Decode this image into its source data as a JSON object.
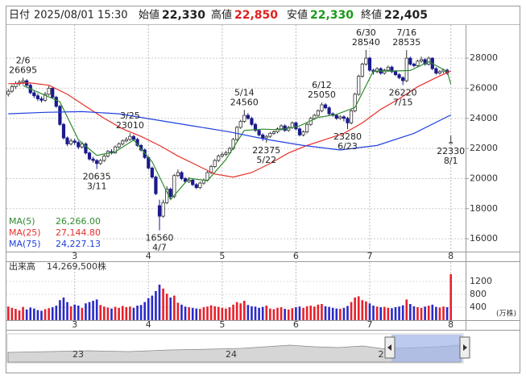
{
  "header": {
    "date_label": "日付",
    "datetime": "2025/08/01 15:30",
    "open_label": "始値",
    "open": "22,330",
    "high_label": "高値",
    "high": "22,850",
    "low_label": "安値",
    "low": "22,330",
    "close_label": "終値",
    "close": "22,405"
  },
  "chart_data": [
    {
      "type": "candlestick",
      "xlim": [
        -0.5,
        124
      ],
      "ylim": [
        15150,
        30200
      ],
      "yticks": [
        16000,
        18000,
        20000,
        22000,
        24000,
        26000,
        28000
      ],
      "xticks": [
        {
          "value": 18,
          "label": "3"
        },
        {
          "value": 38,
          "label": "4"
        },
        {
          "value": 58,
          "label": "5"
        },
        {
          "value": 78,
          "label": "6"
        },
        {
          "value": 98,
          "label": "7"
        },
        {
          "value": 120,
          "label": "8"
        }
      ],
      "up_color": "#ffffff",
      "down_color": "#1a1a8c",
      "grid": true,
      "ohlc": [
        [
          25600,
          25950,
          25450,
          25800
        ],
        [
          25800,
          26250,
          25700,
          26100
        ],
        [
          26100,
          26450,
          25950,
          26300
        ],
        [
          26300,
          26550,
          26150,
          26400
        ],
        [
          26400,
          26695,
          26250,
          26500
        ],
        [
          26500,
          26600,
          26100,
          26200
        ],
        [
          26200,
          26300,
          25600,
          25700
        ],
        [
          25700,
          25850,
          25350,
          25500
        ],
        [
          25500,
          25650,
          25150,
          25300
        ],
        [
          25300,
          25450,
          25050,
          25200
        ],
        [
          25200,
          25750,
          25100,
          25600
        ],
        [
          25600,
          26150,
          25500,
          26000
        ],
        [
          26000,
          26100,
          25300,
          25400
        ],
        [
          25400,
          25500,
          24700,
          24800
        ],
        [
          24800,
          24900,
          23500,
          23600
        ],
        [
          23600,
          23700,
          22600,
          22700
        ],
        [
          22700,
          22800,
          22150,
          22300
        ],
        [
          22300,
          22650,
          22200,
          22500
        ],
        [
          22500,
          22650,
          22250,
          22400
        ],
        [
          22400,
          22500,
          21950,
          22100
        ],
        [
          22100,
          22450,
          22000,
          22300
        ],
        [
          22300,
          22400,
          21600,
          21700
        ],
        [
          21700,
          21800,
          21200,
          21300
        ],
        [
          21300,
          21450,
          21050,
          21200
        ],
        [
          21200,
          21300,
          20635,
          21000
        ],
        [
          21000,
          21300,
          20900,
          21200
        ],
        [
          21200,
          21600,
          21100,
          21500
        ],
        [
          21500,
          21900,
          21400,
          21800
        ],
        [
          21800,
          21950,
          21600,
          21700
        ],
        [
          21700,
          22200,
          21650,
          22100
        ],
        [
          22100,
          22400,
          22000,
          22300
        ],
        [
          22300,
          22600,
          22200,
          22500
        ],
        [
          22500,
          22750,
          22400,
          22600
        ],
        [
          22600,
          23010,
          22500,
          22800
        ],
        [
          22800,
          22900,
          22500,
          22600
        ],
        [
          22600,
          22700,
          22100,
          22200
        ],
        [
          22200,
          22300,
          21800,
          21900
        ],
        [
          21900,
          22000,
          21300,
          21400
        ],
        [
          21400,
          21500,
          20600,
          20700
        ],
        [
          20700,
          20800,
          20000,
          20100
        ],
        [
          20100,
          20200,
          18900,
          19000
        ],
        [
          18200,
          18600,
          16560,
          17500
        ],
        [
          17500,
          18600,
          17400,
          18400
        ],
        [
          18400,
          19500,
          18300,
          19300
        ],
        [
          19300,
          19400,
          18600,
          18800
        ],
        [
          18800,
          20300,
          18700,
          20200
        ],
        [
          20200,
          20600,
          20100,
          20400
        ],
        [
          20400,
          20500,
          19900,
          20000
        ],
        [
          20000,
          20100,
          19700,
          19800
        ],
        [
          19800,
          20100,
          19700,
          19900
        ],
        [
          19900,
          20000,
          19500,
          19600
        ],
        [
          19600,
          19700,
          19300,
          19400
        ],
        [
          19400,
          19800,
          19300,
          19700
        ],
        [
          19700,
          20000,
          19600,
          19900
        ],
        [
          19900,
          20500,
          19800,
          20400
        ],
        [
          20400,
          20900,
          20300,
          20800
        ],
        [
          20800,
          21300,
          20700,
          21200
        ],
        [
          21200,
          21600,
          21100,
          21500
        ],
        [
          21500,
          21750,
          21400,
          21600
        ],
        [
          21600,
          21850,
          21500,
          21700
        ],
        [
          21700,
          22100,
          21600,
          22000
        ],
        [
          22000,
          22700,
          21900,
          22600
        ],
        [
          22600,
          23500,
          22500,
          23400
        ],
        [
          23400,
          23900,
          23300,
          23800
        ],
        [
          23800,
          24560,
          23700,
          24200
        ],
        [
          24200,
          24350,
          23900,
          24000
        ],
        [
          24000,
          24100,
          23500,
          23600
        ],
        [
          23600,
          23700,
          23100,
          23200
        ],
        [
          23200,
          23300,
          22800,
          22900
        ],
        [
          22900,
          23000,
          22500,
          22700
        ],
        [
          22700,
          22900,
          22375,
          22800
        ],
        [
          22800,
          23100,
          22700,
          23000
        ],
        [
          23000,
          23200,
          22900,
          23100
        ],
        [
          23100,
          23400,
          23000,
          23300
        ],
        [
          23300,
          23600,
          23200,
          23500
        ],
        [
          23500,
          23600,
          23100,
          23200
        ],
        [
          23200,
          23500,
          23100,
          23400
        ],
        [
          23400,
          23800,
          23300,
          23700
        ],
        [
          23700,
          23800,
          23200,
          23300
        ],
        [
          23300,
          23400,
          22800,
          22900
        ],
        [
          22900,
          23200,
          22800,
          23100
        ],
        [
          23100,
          23700,
          23000,
          23600
        ],
        [
          23600,
          24100,
          23500,
          24000
        ],
        [
          24000,
          24300,
          23900,
          24200
        ],
        [
          24200,
          24600,
          24100,
          24500
        ],
        [
          24500,
          25050,
          24400,
          24900
        ],
        [
          24900,
          25000,
          24600,
          24700
        ],
        [
          24700,
          24800,
          24200,
          24300
        ],
        [
          24300,
          24400,
          24100,
          24200
        ],
        [
          24200,
          24300,
          23900,
          24000
        ],
        [
          24000,
          24200,
          23900,
          24100
        ],
        [
          24100,
          24200,
          23800,
          24000
        ],
        [
          24000,
          24100,
          23280,
          23700
        ],
        [
          23700,
          24600,
          23600,
          24500
        ],
        [
          24500,
          25700,
          24400,
          25600
        ],
        [
          25600,
          26900,
          25500,
          26800
        ],
        [
          26800,
          27700,
          26700,
          27600
        ],
        [
          27600,
          28540,
          27500,
          28000
        ],
        [
          28000,
          28100,
          27100,
          27200
        ],
        [
          27200,
          27300,
          26900,
          27100
        ],
        [
          27100,
          27400,
          27000,
          27300
        ],
        [
          27300,
          27400,
          26900,
          27000
        ],
        [
          27000,
          27300,
          26900,
          27200
        ],
        [
          27200,
          27500,
          27100,
          27400
        ],
        [
          27400,
          27500,
          27000,
          27100
        ],
        [
          27100,
          27200,
          26800,
          26900
        ],
        [
          26900,
          27000,
          26600,
          26700
        ],
        [
          26700,
          26800,
          26220,
          26500
        ],
        [
          26500,
          28535,
          26400,
          28000
        ],
        [
          28000,
          28100,
          27500,
          27600
        ],
        [
          27600,
          27700,
          27400,
          27500
        ],
        [
          27500,
          27900,
          27400,
          27800
        ],
        [
          27800,
          28100,
          27700,
          27900
        ],
        [
          27900,
          28000,
          27500,
          27600
        ],
        [
          27600,
          28100,
          27500,
          28000
        ],
        [
          28000,
          28050,
          27200,
          27300
        ],
        [
          27300,
          27400,
          26900,
          27000
        ],
        [
          27000,
          27200,
          26900,
          27100
        ],
        [
          27100,
          27300,
          27000,
          27200
        ],
        [
          27200,
          27300,
          26900,
          27000
        ],
        [
          22330,
          22850,
          22330,
          22405
        ]
      ],
      "series": [
        {
          "name": "MA(5)",
          "value_label": "26,266.00",
          "color": "#2e8b2e",
          "x": [
            4,
            9,
            14,
            19,
            24,
            29,
            34,
            39,
            44,
            49,
            54,
            59,
            64,
            69,
            74,
            79,
            84,
            89,
            94,
            99,
            104,
            109,
            114,
            119,
            120
          ],
          "values": [
            26180,
            25640,
            25100,
            22580,
            21540,
            21780,
            22560,
            21120,
            18600,
            20020,
            19860,
            21260,
            23200,
            23280,
            23240,
            23500,
            24060,
            24260,
            24720,
            27140,
            27140,
            27180,
            27760,
            27120,
            26266
          ]
        },
        {
          "name": "MA(25)",
          "value_label": "27,144.80",
          "color": "#e8302a",
          "x": [
            0,
            6,
            11,
            16,
            21,
            26,
            31,
            36,
            41,
            46,
            51,
            56,
            61,
            66,
            71,
            76,
            81,
            86,
            91,
            96,
            101,
            106,
            111,
            116,
            120
          ],
          "values": [
            26300,
            26350,
            26200,
            25600,
            24800,
            24000,
            23300,
            22800,
            22200,
            21500,
            20900,
            20300,
            20100,
            20400,
            21000,
            21700,
            22200,
            22600,
            23000,
            23700,
            24600,
            25300,
            26100,
            26700,
            27144.8
          ]
        },
        {
          "name": "MA(75)",
          "value_label": "24,227.13",
          "color": "#2040e0",
          "x": [
            0,
            10,
            20,
            30,
            40,
            50,
            60,
            70,
            80,
            90,
            100,
            110,
            120
          ],
          "values": [
            24300,
            24400,
            24450,
            24300,
            23900,
            23500,
            23100,
            22600,
            22200,
            21900,
            22200,
            23000,
            24227.13
          ]
        }
      ],
      "annotations": [
        {
          "x": 4,
          "date": "2/6",
          "value": 26695
        },
        {
          "x": 24,
          "date": "3/11",
          "value": 20635
        },
        {
          "x": 33,
          "date": "3/25",
          "value": 23010
        },
        {
          "x": 41,
          "date": "4/7",
          "value": 16560
        },
        {
          "x": 64,
          "date": "5/14",
          "value": 24560
        },
        {
          "x": 70,
          "date": "5/22",
          "value": 22375
        },
        {
          "x": 85,
          "date": "6/12",
          "value": 25050
        },
        {
          "x": 92,
          "date": "6/23",
          "value": 23280
        },
        {
          "x": 97,
          "date": "6/30",
          "value": 28540
        },
        {
          "x": 107,
          "date": "7/15",
          "value": 26220
        },
        {
          "x": 108,
          "date": "7/16",
          "value": 28535
        },
        {
          "x": 120,
          "date": "8/1",
          "value": 22330
        }
      ]
    },
    {
      "type": "bar",
      "title": "出来高",
      "total": "14,269,500株",
      "unit": "(万株)",
      "xlim": [
        -0.5,
        124
      ],
      "ylim": [
        0,
        1800
      ],
      "yticks": [
        400,
        800,
        1200
      ],
      "xticks": [
        {
          "value": 18,
          "label": "3"
        },
        {
          "value": 38,
          "label": "4"
        },
        {
          "value": 58,
          "label": "5"
        },
        {
          "value": 78,
          "label": "6"
        },
        {
          "value": 98,
          "label": "7"
        },
        {
          "value": 120,
          "label": "8"
        }
      ],
      "up_color": "#e8202a",
      "down_color": "#2a2ac8",
      "values": [
        420,
        380,
        350,
        300,
        410,
        330,
        390,
        360,
        310,
        290,
        340,
        370,
        400,
        450,
        620,
        700,
        560,
        430,
        480,
        450,
        380,
        520,
        560,
        600,
        640,
        470,
        420,
        390,
        360,
        410,
        380,
        440,
        400,
        420,
        380,
        450,
        470,
        560,
        680,
        760,
        900,
        1100,
        980,
        820,
        700,
        760,
        540,
        480,
        420,
        400,
        380,
        360,
        350,
        400,
        420,
        460,
        430,
        410,
        380,
        360,
        400,
        480,
        560,
        520,
        600,
        470,
        430,
        420,
        380,
        410,
        450,
        360,
        340,
        380,
        400,
        350,
        330,
        370,
        400,
        420,
        380,
        430,
        450,
        420,
        480,
        500,
        430,
        410,
        380,
        360,
        350,
        380,
        440,
        560,
        700,
        740,
        620,
        580,
        520,
        450,
        420,
        400,
        410,
        380,
        370,
        400,
        420,
        460,
        640,
        500,
        430,
        400,
        380,
        420,
        450,
        480,
        410,
        390,
        420,
        400,
        1426.95
      ]
    }
  ],
  "navigator": {
    "labels": [
      "23",
      "24",
      "2"
    ]
  }
}
